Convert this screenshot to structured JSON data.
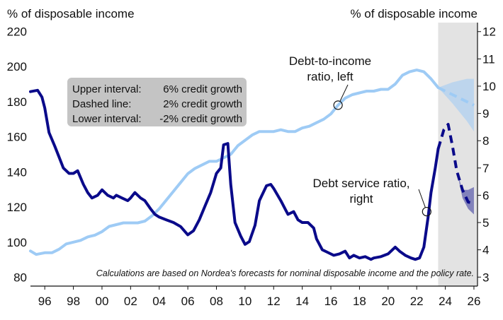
{
  "chart_data": {
    "type": "line",
    "left_axis_title": "% of disposable income",
    "right_axis_title": "% of disposable income",
    "xlim": [
      1995.0,
      2026.25
    ],
    "left_ylim": [
      75,
      225
    ],
    "right_ylim": [
      2.67,
      12.33
    ],
    "x_ticks": [
      {
        "x": 1996,
        "label": "96"
      },
      {
        "x": 1998,
        "label": "98"
      },
      {
        "x": 2000,
        "label": "00"
      },
      {
        "x": 2002,
        "label": "02"
      },
      {
        "x": 2004,
        "label": "04"
      },
      {
        "x": 2006,
        "label": "06"
      },
      {
        "x": 2008,
        "label": "08"
      },
      {
        "x": 2010,
        "label": "10"
      },
      {
        "x": 2012,
        "label": "12"
      },
      {
        "x": 2014,
        "label": "14"
      },
      {
        "x": 2016,
        "label": "16"
      },
      {
        "x": 2018,
        "label": "18"
      },
      {
        "x": 2020,
        "label": "20"
      },
      {
        "x": 2022,
        "label": "22"
      },
      {
        "x": 2024,
        "label": "24"
      },
      {
        "x": 2026,
        "label": "26"
      }
    ],
    "left_ticks": [
      80,
      100,
      120,
      140,
      160,
      180,
      200,
      220
    ],
    "right_ticks": [
      3,
      4,
      5,
      6,
      7,
      8,
      9,
      10,
      11,
      12
    ],
    "forecast_shade": [
      2023.5,
      2026.25
    ],
    "forecast_shade_color": "#e3e3e3",
    "series": [
      {
        "key": "debt_to_income",
        "axis": "left",
        "color": "#9ecbf5",
        "points": [
          [
            1995.0,
            95
          ],
          [
            1995.4,
            93
          ],
          [
            1996.0,
            94
          ],
          [
            1996.5,
            94
          ],
          [
            1997.0,
            96
          ],
          [
            1997.5,
            99
          ],
          [
            1998.0,
            100
          ],
          [
            1998.5,
            101
          ],
          [
            1999.0,
            103
          ],
          [
            1999.5,
            104
          ],
          [
            2000.0,
            106
          ],
          [
            2000.5,
            109
          ],
          [
            2001.0,
            110
          ],
          [
            2001.5,
            111
          ],
          [
            2002.0,
            111
          ],
          [
            2002.5,
            111
          ],
          [
            2003.0,
            112
          ],
          [
            2003.5,
            115
          ],
          [
            2004.0,
            119
          ],
          [
            2004.5,
            124
          ],
          [
            2005.0,
            129
          ],
          [
            2005.5,
            134
          ],
          [
            2006.0,
            139
          ],
          [
            2006.5,
            142
          ],
          [
            2007.0,
            144
          ],
          [
            2007.5,
            146
          ],
          [
            2008.0,
            146
          ],
          [
            2008.5,
            148
          ],
          [
            2009.0,
            150
          ],
          [
            2009.5,
            155
          ],
          [
            2010.0,
            158
          ],
          [
            2010.5,
            161
          ],
          [
            2011.0,
            163
          ],
          [
            2011.5,
            163
          ],
          [
            2012.0,
            163
          ],
          [
            2012.5,
            164
          ],
          [
            2013.0,
            163
          ],
          [
            2013.5,
            163
          ],
          [
            2014.0,
            165
          ],
          [
            2014.5,
            166
          ],
          [
            2015.0,
            168
          ],
          [
            2015.5,
            170
          ],
          [
            2016.0,
            173
          ],
          [
            2016.5,
            178
          ],
          [
            2017.0,
            182
          ],
          [
            2017.5,
            184
          ],
          [
            2018.0,
            185
          ],
          [
            2018.5,
            186
          ],
          [
            2019.0,
            186
          ],
          [
            2019.5,
            187
          ],
          [
            2020.0,
            187
          ],
          [
            2020.5,
            190
          ],
          [
            2021.0,
            195
          ],
          [
            2021.5,
            197
          ],
          [
            2022.0,
            198
          ],
          [
            2022.5,
            197
          ],
          [
            2023.0,
            193
          ],
          [
            2023.5,
            188
          ]
        ],
        "forecast": [
          [
            2023.5,
            188
          ],
          [
            2024.5,
            184
          ],
          [
            2025.5,
            180
          ],
          [
            2026.0,
            178
          ]
        ],
        "band_upper": [
          [
            2023.5,
            188
          ],
          [
            2024.5,
            191
          ],
          [
            2025.5,
            193
          ],
          [
            2026.0,
            193
          ]
        ],
        "band_lower": [
          [
            2023.5,
            188
          ],
          [
            2024.5,
            179
          ],
          [
            2025.5,
            169
          ],
          [
            2026.0,
            163
          ]
        ]
      },
      {
        "key": "debt_service",
        "axis": "right",
        "color": "#0a0a8a",
        "points": [
          [
            1995.0,
            9.8
          ],
          [
            1995.5,
            9.85
          ],
          [
            1995.8,
            9.6
          ],
          [
            1996.0,
            9.2
          ],
          [
            1996.3,
            8.3
          ],
          [
            1996.7,
            7.8
          ],
          [
            1997.0,
            7.4
          ],
          [
            1997.3,
            7.0
          ],
          [
            1997.7,
            6.8
          ],
          [
            1998.0,
            6.8
          ],
          [
            1998.3,
            6.9
          ],
          [
            1998.7,
            6.4
          ],
          [
            1999.0,
            6.1
          ],
          [
            1999.3,
            5.9
          ],
          [
            1999.7,
            6.0
          ],
          [
            2000.0,
            6.2
          ],
          [
            2000.4,
            6.0
          ],
          [
            2000.8,
            5.9
          ],
          [
            2001.0,
            6.0
          ],
          [
            2001.4,
            5.9
          ],
          [
            2001.8,
            5.8
          ],
          [
            2002.0,
            5.9
          ],
          [
            2002.3,
            6.1
          ],
          [
            2002.7,
            5.9
          ],
          [
            2003.0,
            5.8
          ],
          [
            2003.4,
            5.5
          ],
          [
            2003.7,
            5.3
          ],
          [
            2004.0,
            5.2
          ],
          [
            2004.5,
            5.1
          ],
          [
            2005.0,
            5.0
          ],
          [
            2005.5,
            4.85
          ],
          [
            2006.0,
            4.55
          ],
          [
            2006.4,
            4.7
          ],
          [
            2006.8,
            5.1
          ],
          [
            2007.2,
            5.6
          ],
          [
            2007.6,
            6.1
          ],
          [
            2008.0,
            6.8
          ],
          [
            2008.3,
            7.0
          ],
          [
            2008.5,
            7.85
          ],
          [
            2008.8,
            7.9
          ],
          [
            2009.0,
            6.4
          ],
          [
            2009.3,
            5.0
          ],
          [
            2009.7,
            4.5
          ],
          [
            2010.0,
            4.2
          ],
          [
            2010.3,
            4.3
          ],
          [
            2010.7,
            4.9
          ],
          [
            2011.0,
            5.8
          ],
          [
            2011.5,
            6.35
          ],
          [
            2011.8,
            6.4
          ],
          [
            2012.0,
            6.25
          ],
          [
            2012.5,
            5.8
          ],
          [
            2012.8,
            5.5
          ],
          [
            2013.0,
            5.3
          ],
          [
            2013.4,
            5.4
          ],
          [
            2013.7,
            5.1
          ],
          [
            2014.0,
            5.0
          ],
          [
            2014.4,
            5.0
          ],
          [
            2014.8,
            4.8
          ],
          [
            2015.0,
            4.4
          ],
          [
            2015.4,
            4.0
          ],
          [
            2015.8,
            3.9
          ],
          [
            2016.2,
            3.8
          ],
          [
            2016.6,
            3.85
          ],
          [
            2017.0,
            3.95
          ],
          [
            2017.3,
            3.7
          ],
          [
            2017.6,
            3.8
          ],
          [
            2018.0,
            3.7
          ],
          [
            2018.4,
            3.75
          ],
          [
            2018.8,
            3.65
          ],
          [
            2019.0,
            3.7
          ],
          [
            2019.5,
            3.75
          ],
          [
            2020.0,
            3.85
          ],
          [
            2020.5,
            4.1
          ],
          [
            2020.8,
            3.95
          ],
          [
            2021.2,
            3.8
          ],
          [
            2021.6,
            3.7
          ],
          [
            2021.9,
            3.65
          ],
          [
            2022.2,
            3.7
          ],
          [
            2022.5,
            4.1
          ],
          [
            2022.8,
            5.2
          ],
          [
            2023.0,
            6.1
          ],
          [
            2023.3,
            7.0
          ],
          [
            2023.5,
            7.7
          ]
        ],
        "forecast": [
          [
            2023.5,
            7.7
          ],
          [
            2023.9,
            8.4
          ],
          [
            2024.2,
            8.6
          ],
          [
            2024.5,
            7.8
          ],
          [
            2024.8,
            6.9
          ],
          [
            2025.2,
            6.2
          ],
          [
            2025.6,
            5.75
          ],
          [
            2026.0,
            5.7
          ]
        ],
        "band_upper": [
          [
            2024.5,
            7.8
          ],
          [
            2024.8,
            6.9
          ],
          [
            2025.2,
            6.2
          ],
          [
            2025.6,
            6.2
          ],
          [
            2026.0,
            6.3
          ]
        ],
        "band_lower": [
          [
            2024.5,
            7.8
          ],
          [
            2024.8,
            6.9
          ],
          [
            2025.2,
            5.9
          ],
          [
            2025.6,
            5.5
          ],
          [
            2026.0,
            5.3
          ]
        ]
      }
    ],
    "annotations": [
      {
        "key": "dti",
        "lines": [
          "Debt-to-income",
          "ratio, left"
        ],
        "marker": {
          "x": 2016.5,
          "y": 178,
          "axis": "left"
        }
      },
      {
        "key": "dsr",
        "lines": [
          "Debt service ratio,",
          "right"
        ],
        "marker": {
          "x": 2022.7,
          "y": 5.4,
          "axis": "right"
        }
      }
    ],
    "legend_box": {
      "rows": [
        {
          "label": "Upper interval:",
          "value": "6% credit growth"
        },
        {
          "label": "Dashed line:",
          "value": "2% credit growth"
        },
        {
          "label": "Lower interval:",
          "value": "-2% credit growth"
        }
      ],
      "fill": "#c4c4c4"
    },
    "footnote": "Calculations are based on Nordea's forecasts for nominal disposable income and the policy rate."
  }
}
